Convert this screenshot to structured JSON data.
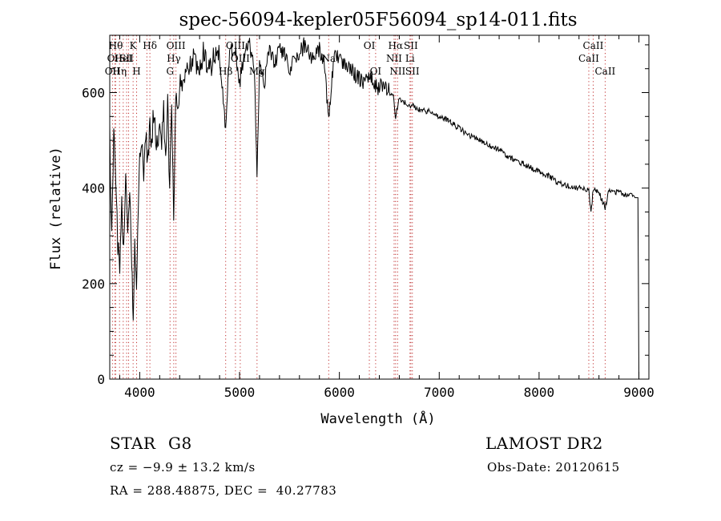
{
  "chart_data": {
    "type": "line",
    "title": "spec-56094-kepler05F56094_sp14-011.fits",
    "xlabel": "Wavelength (Å)",
    "ylabel": "Flux (relative)",
    "xlim": [
      3700,
      9100
    ],
    "ylim": [
      0,
      720
    ],
    "x_ticks": [
      4000,
      5000,
      6000,
      7000,
      8000,
      9000
    ],
    "y_ticks": [
      0,
      200,
      400,
      600
    ],
    "x_minor_step": 200,
    "y_minor_step": 50,
    "grid": false,
    "series_color": "#000000",
    "line_marker_color": "#c03030",
    "series": [
      {
        "x": [
          3700,
          3720,
          3740,
          3760,
          3780,
          3800,
          3820,
          3840,
          3860,
          3880,
          3900,
          3920,
          3935,
          3950,
          3968,
          3980,
          4000,
          4020,
          4040,
          4060,
          4080,
          4102,
          4120,
          4140,
          4160,
          4180,
          4200,
          4220,
          4240,
          4260,
          4280,
          4300,
          4320,
          4340,
          4360,
          4380,
          4400,
          4450,
          4500,
          4550,
          4600,
          4650,
          4700,
          4750,
          4800,
          4861,
          4900,
          4950,
          5000,
          5050,
          5100,
          5150,
          5175,
          5200,
          5250,
          5300,
          5350,
          5400,
          5450,
          5500,
          5550,
          5600,
          5650,
          5700,
          5750,
          5800,
          5850,
          5893,
          5950,
          6000,
          6050,
          6100,
          6150,
          6200,
          6250,
          6300,
          6350,
          6400,
          6450,
          6500,
          6540,
          6563,
          6600,
          6650,
          6700,
          6750,
          6800,
          6900,
          7000,
          7100,
          7200,
          7300,
          7400,
          7500,
          7600,
          7700,
          7800,
          7900,
          8000,
          8100,
          8200,
          8300,
          8400,
          8498,
          8520,
          8542,
          8600,
          8662,
          8700,
          8800,
          8900,
          8960,
          8990,
          8995,
          9000
        ],
        "y": [
          520,
          300,
          510,
          430,
          280,
          240,
          360,
          280,
          420,
          300,
          380,
          250,
          130,
          280,
          180,
          340,
          470,
          500,
          430,
          520,
          460,
          530,
          490,
          560,
          520,
          470,
          540,
          500,
          560,
          470,
          580,
          400,
          560,
          340,
          600,
          560,
          610,
          630,
          650,
          670,
          660,
          690,
          640,
          690,
          680,
          520,
          680,
          700,
          620,
          690,
          700,
          650,
          420,
          660,
          620,
          700,
          660,
          690,
          680,
          650,
          670,
          680,
          700,
          680,
          670,
          690,
          660,
          540,
          690,
          670,
          660,
          650,
          640,
          630,
          620,
          640,
          620,
          610,
          620,
          600,
          590,
          550,
          590,
          580,
          575,
          570,
          565,
          560,
          550,
          540,
          525,
          510,
          500,
          490,
          480,
          465,
          455,
          445,
          435,
          425,
          410,
          405,
          400,
          395,
          345,
          400,
          390,
          360,
          395,
          390,
          385,
          380,
          380,
          200,
          0
        ],
        "line_points": "0,0"
      }
    ],
    "line_markers": [
      {
        "wl": 3727,
        "labels": [
          "OII"
        ],
        "row": 2
      },
      {
        "wl": 3750,
        "labels": [
          "OII"
        ],
        "row": 1
      },
      {
        "wl": 3760,
        "labels": [
          "Hθ"
        ],
        "row": 0
      },
      {
        "wl": 3798,
        "labels": [
          "Hη"
        ],
        "row": 2
      },
      {
        "wl": 3835,
        "labels": [
          "HeI"
        ],
        "row": 1
      },
      {
        "wl": 3869,
        "labels": [
          "SII"
        ],
        "row": 1
      },
      {
        "wl": 3889,
        "labels": [],
        "row": 0
      },
      {
        "wl": 3934,
        "labels": [
          "K"
        ],
        "row": 0
      },
      {
        "wl": 3969,
        "labels": [
          "H"
        ],
        "row": 2
      },
      {
        "wl": 4072,
        "labels": [],
        "row": 0
      },
      {
        "wl": 4102,
        "labels": [
          "Hδ"
        ],
        "row": 0
      },
      {
        "wl": 4304,
        "labels": [
          "G"
        ],
        "row": 2
      },
      {
        "wl": 4341,
        "labels": [
          "Hγ"
        ],
        "row": 1
      },
      {
        "wl": 4363,
        "labels": [
          "OIII"
        ],
        "row": 0
      },
      {
        "wl": 4861,
        "labels": [
          "Hβ"
        ],
        "row": 2
      },
      {
        "wl": 4959,
        "labels": [
          "OIII"
        ],
        "row": 0
      },
      {
        "wl": 5007,
        "labels": [
          "OIII"
        ],
        "row": 1
      },
      {
        "wl": 5175,
        "labels": [
          "Mg"
        ],
        "row": 2
      },
      {
        "wl": 5893,
        "labels": [
          "Na"
        ],
        "row": 1
      },
      {
        "wl": 6300,
        "labels": [
          "OI"
        ],
        "row": 0
      },
      {
        "wl": 6363,
        "labels": [
          "OI"
        ],
        "row": 2
      },
      {
        "wl": 6548,
        "labels": [
          "NII"
        ],
        "row": 1
      },
      {
        "wl": 6563,
        "labels": [
          "Hα"
        ],
        "row": 0
      },
      {
        "wl": 6583,
        "labels": [
          "NII"
        ],
        "row": 2
      },
      {
        "wl": 6707,
        "labels": [
          "Li"
        ],
        "row": 1
      },
      {
        "wl": 6716,
        "labels": [
          "SII"
        ],
        "row": 0
      },
      {
        "wl": 6731,
        "labels": [
          "SII"
        ],
        "row": 2
      },
      {
        "wl": 8498,
        "labels": [
          "CaII"
        ],
        "row": 1
      },
      {
        "wl": 8542,
        "labels": [
          "CaII"
        ],
        "row": 0
      },
      {
        "wl": 8662,
        "labels": [
          "CaII"
        ],
        "row": 2
      }
    ]
  },
  "info": {
    "object_type": "STAR",
    "subclass": "G8",
    "survey": "LAMOST DR2",
    "cz": "cz = −9.9 ± 13.2 km/s",
    "obs_date": "Obs-Date: 20120615",
    "coords": "RA = 288.48875, DEC =  40.27783"
  }
}
